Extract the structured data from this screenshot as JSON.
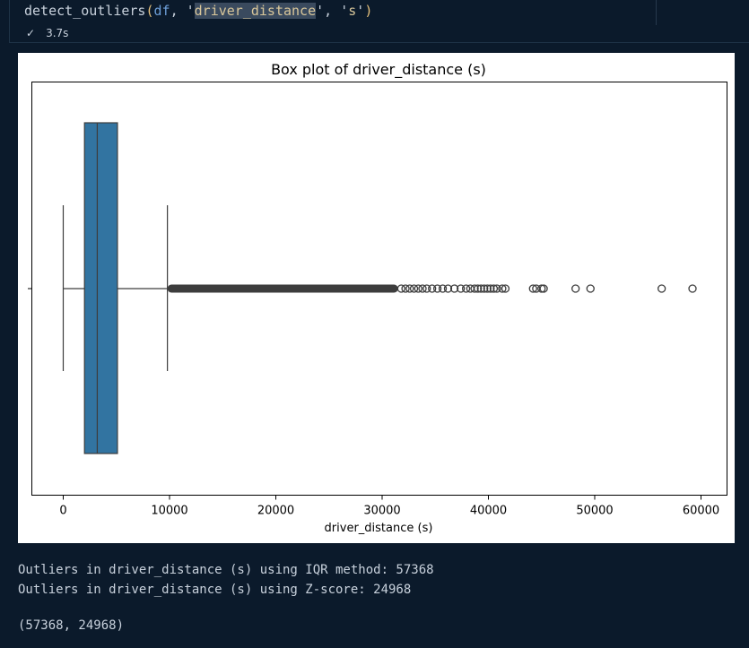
{
  "code": {
    "func": "detect_outliers",
    "arg_df": "df",
    "arg_col": "driver_distance",
    "arg_unit": "s"
  },
  "status": {
    "check_icon": "checkmark-icon",
    "exec_time": "3.7s"
  },
  "output": {
    "line1": "Outliers in driver_distance (s) using IQR method: 57368",
    "line2": "Outliers in driver_distance (s) using Z-score: 24968",
    "line3": "(57368, 24968)"
  },
  "colors": {
    "box_fill": "#3274a1",
    "page_bg": "#0b1a2b"
  },
  "chart_data": {
    "type": "box",
    "title": "Box plot of driver_distance (s)",
    "xlabel": "driver_distance (s)",
    "ylabel": "",
    "xlim": [
      -3000,
      62000
    ],
    "xticks": [
      0,
      10000,
      20000,
      30000,
      40000,
      50000,
      60000
    ],
    "xtick_labels": [
      "0",
      "10000",
      "20000",
      "30000",
      "40000",
      "50000",
      "60000"
    ],
    "box": {
      "whisker_low": 0,
      "q1": 2000,
      "median": 3200,
      "q3": 5100,
      "whisker_high": 9800
    },
    "outlier_dense_range": [
      9800,
      31500
    ],
    "outliers": [
      31800,
      32200,
      32600,
      33000,
      33400,
      33800,
      34200,
      34700,
      35200,
      35700,
      36200,
      36800,
      37400,
      37900,
      38300,
      38700,
      39000,
      39300,
      39600,
      39900,
      40200,
      40500,
      40800,
      41300,
      41600,
      44200,
      44500,
      45000,
      45200,
      48200,
      49600,
      56300,
      59200
    ]
  }
}
